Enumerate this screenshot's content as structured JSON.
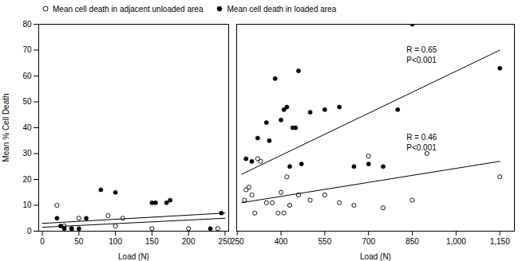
{
  "chart_data": [
    {
      "type": "scatter",
      "xlabel": "Load (N)",
      "ylabel": "Mean % Cell Death",
      "xlim": [
        -5,
        255
      ],
      "xticks": [
        0,
        50,
        100,
        150,
        200,
        250
      ],
      "ylim": [
        0,
        80
      ],
      "yticks": [
        0,
        10,
        20,
        30,
        40,
        50,
        60,
        70,
        80
      ],
      "grid": false,
      "legend": "upper left",
      "series": [
        {
          "name": "Mean cell death in adjacent unloaded area",
          "color": "#000000",
          "marker": "open_circle",
          "x": [
            20,
            30,
            40,
            50,
            90,
            100,
            110,
            150,
            200,
            240
          ],
          "values": [
            10,
            2,
            1,
            5,
            6,
            2,
            5,
            1,
            1,
            1
          ]
        },
        {
          "name": "Mean cell death in loaded area",
          "color": "#000000",
          "marker": "filled_circle",
          "x": [
            20,
            25,
            30,
            40,
            50,
            60,
            80,
            100,
            150,
            155,
            170,
            175,
            230,
            245
          ],
          "values": [
            5,
            2,
            1,
            1,
            1,
            5,
            16,
            15,
            11,
            11,
            11,
            12,
            1,
            7
          ]
        },
        {
          "type": "line",
          "color": "#000000",
          "line_style": "solid",
          "x": [
            0,
            250
          ],
          "values": [
            3,
            7
          ]
        },
        {
          "type": "line",
          "color": "#000000",
          "line_style": "solid",
          "x": [
            0,
            250
          ],
          "values": [
            1.5,
            5
          ]
        }
      ]
    },
    {
      "type": "scatter",
      "xlabel": "Load (N)",
      "xlim": [
        248,
        1200
      ],
      "xticks": [
        250,
        400,
        550,
        700,
        850,
        1000,
        1150
      ],
      "ylim": [
        0,
        80
      ],
      "tick_labels": "x",
      "grid": false,
      "series": [
        {
          "color": "#000000",
          "marker": "open_circle",
          "x": [
            275,
            280,
            290,
            300,
            310,
            320,
            330,
            350,
            370,
            390,
            400,
            410,
            420,
            430,
            460,
            500,
            550,
            600,
            650,
            700,
            750,
            850,
            900,
            1150
          ],
          "values": [
            12,
            16,
            17,
            14,
            7,
            28,
            27,
            11,
            11,
            7,
            15,
            7,
            21,
            10,
            14,
            12,
            14,
            11,
            10,
            29,
            9,
            12,
            30,
            21
          ]
        },
        {
          "color": "#000000",
          "marker": "filled_circle",
          "x": [
            280,
            300,
            320,
            350,
            360,
            380,
            400,
            410,
            420,
            430,
            440,
            450,
            460,
            470,
            500,
            550,
            600,
            650,
            700,
            750,
            800,
            850,
            1150
          ],
          "values": [
            28,
            27,
            36,
            42,
            35,
            59,
            43,
            47,
            48,
            25,
            40,
            40,
            62,
            26,
            46,
            47,
            48,
            25,
            26,
            25,
            47,
            80,
            63
          ]
        },
        {
          "type": "line",
          "color": "#000000",
          "line_style": "solid",
          "x": [
            265,
            1150
          ],
          "values": [
            22,
            70
          ]
        },
        {
          "type": "line",
          "color": "#000000",
          "line_style": "solid",
          "x": [
            265,
            1150
          ],
          "values": [
            11,
            27
          ]
        }
      ],
      "annotations": [
        {
          "text": "R = 0.65\nP<0.001",
          "x": 830,
          "y": 72
        },
        {
          "text": "R = 0.46\nP<0.001",
          "x": 830,
          "y": 38
        }
      ]
    }
  ]
}
